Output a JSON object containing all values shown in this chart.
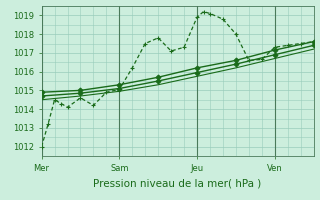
{
  "bg_color": "#cceedd",
  "grid_color": "#99ccbb",
  "line_color": "#1a6b1a",
  "xlabel": "Pression niveau de la mer( hPa )",
  "xlabel_fontsize": 7.5,
  "ylim": [
    1011.5,
    1019.5
  ],
  "yticks": [
    1012,
    1013,
    1014,
    1015,
    1016,
    1017,
    1018,
    1019
  ],
  "xtick_labels": [
    "Mer",
    "Sam",
    "Jeu",
    "Ven"
  ],
  "xtick_positions": [
    0,
    6,
    12,
    18
  ],
  "xlim": [
    0,
    21
  ],
  "series": [
    {
      "x": [
        0,
        0.5,
        1,
        1.5,
        2,
        3,
        4,
        5,
        6,
        7,
        8,
        9,
        10,
        11,
        12,
        12.5,
        13,
        14,
        15,
        16,
        17,
        18,
        19,
        20,
        21
      ],
      "y": [
        1012.0,
        1013.2,
        1014.5,
        1014.3,
        1014.1,
        1014.6,
        1014.2,
        1014.9,
        1015.05,
        1016.2,
        1017.5,
        1017.8,
        1017.1,
        1017.3,
        1018.9,
        1019.2,
        1019.1,
        1018.8,
        1018.0,
        1016.6,
        1016.65,
        1017.3,
        1017.4,
        1017.5,
        1017.6
      ],
      "style": "--",
      "marker": "+",
      "markersize": 3.5,
      "linewidth": 0.9,
      "dashes": [
        3,
        2
      ]
    },
    {
      "x": [
        0,
        3,
        6,
        9,
        12,
        15,
        18,
        21
      ],
      "y": [
        1014.9,
        1015.0,
        1015.3,
        1015.7,
        1016.2,
        1016.6,
        1017.15,
        1017.6
      ],
      "style": "-",
      "marker": "D",
      "markersize": 2.5,
      "linewidth": 1.0
    },
    {
      "x": [
        0,
        3,
        6,
        9,
        12,
        15,
        18,
        21
      ],
      "y": [
        1014.7,
        1014.85,
        1015.1,
        1015.5,
        1015.95,
        1016.4,
        1016.9,
        1017.4
      ],
      "style": "-",
      "marker": "D",
      "markersize": 2.5,
      "linewidth": 1.0
    },
    {
      "x": [
        0,
        3,
        6,
        9,
        12,
        15,
        18,
        21
      ],
      "y": [
        1014.5,
        1014.7,
        1014.95,
        1015.3,
        1015.75,
        1016.2,
        1016.7,
        1017.2
      ],
      "style": "-",
      "marker": null,
      "markersize": 0,
      "linewidth": 0.8
    }
  ],
  "vlines": [
    0,
    6,
    12,
    18
  ],
  "vline_color": "#4a7a5a",
  "tick_fontsize": 6,
  "ytick_fontsize": 6
}
